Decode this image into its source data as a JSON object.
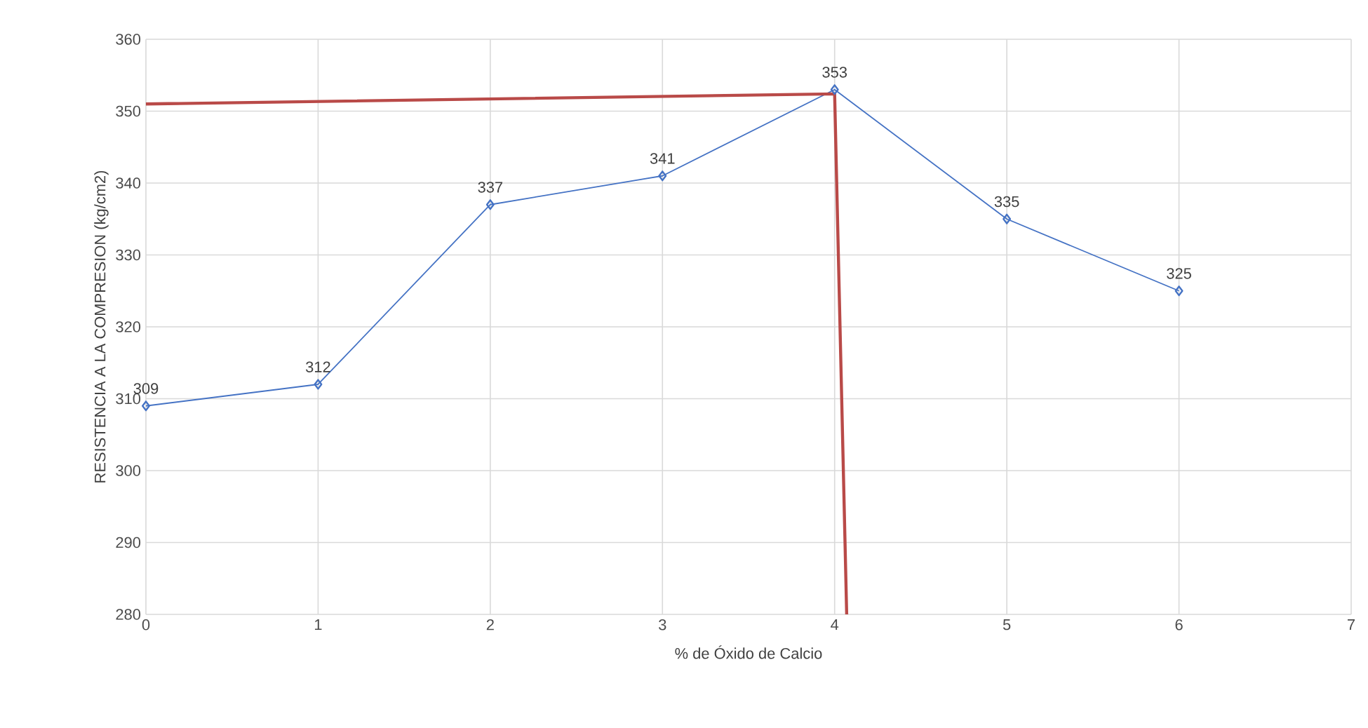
{
  "chart_data": {
    "type": "line",
    "xlabel": "% de Óxido de Calcio",
    "ylabel": "RESISTENCIA A LA COMPRESION (kg/cm2)",
    "x": [
      0,
      1,
      2,
      3,
      4,
      5,
      6
    ],
    "series": [
      {
        "color": "#4472c4",
        "values": [
          309,
          312,
          337,
          341,
          353,
          335,
          325
        ],
        "value_labels": [
          "309",
          "312",
          "337",
          "341",
          "353",
          "335",
          "325"
        ]
      },
      {
        "color": "#b94a48",
        "x": [
          0,
          4,
          4.07
        ],
        "values": [
          351,
          352.4,
          280
        ],
        "marker": "none"
      }
    ],
    "xlim": [
      0,
      7
    ],
    "xticks": [
      0,
      1,
      2,
      3,
      4,
      5,
      6,
      7
    ],
    "ylim": [
      280,
      360
    ],
    "yticks": [
      280,
      290,
      300,
      310,
      320,
      330,
      340,
      350,
      360
    ],
    "grid": true,
    "marker": "diamond"
  }
}
